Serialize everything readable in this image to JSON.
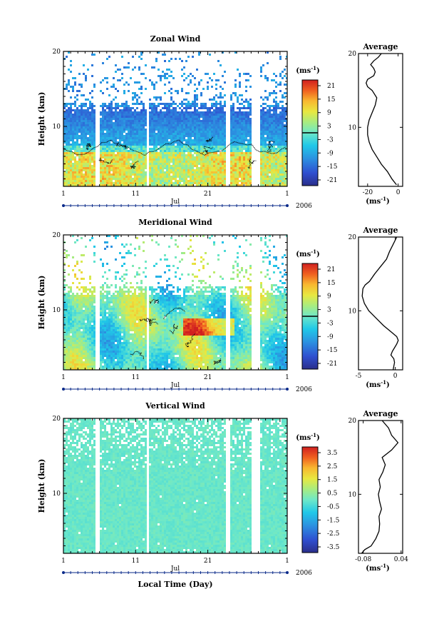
{
  "chart_data": [
    {
      "type": "heatmap",
      "title": "Zonal Wind",
      "ylabel": "Height (km)",
      "ylim": [
        2,
        20
      ],
      "y_ticks": [
        "20",
        "10"
      ],
      "x_ticks": [
        "1",
        "11",
        "21",
        "1"
      ],
      "month_label": "Jul",
      "year_label": "2006",
      "colorbar": {
        "unit": "(ms",
        "unit_exp": "-1",
        "unit_close": ")",
        "labels": [
          "21",
          "15",
          "9",
          "3",
          "-3",
          "-9",
          "-15",
          "-21"
        ],
        "zero_line": 0
      },
      "profile": {
        "title": "Average",
        "ylim": [
          2,
          20
        ],
        "xlim": [
          -26,
          3
        ],
        "x_ticks": [
          "-20",
          "0"
        ],
        "x_tick_values": [
          -20,
          0
        ],
        "y_ticks": [
          "20",
          "10"
        ],
        "xunit": "(ms",
        "xunit_exp": "-1",
        "xunit_close": ")",
        "y": [
          2.2,
          3,
          4,
          5,
          6,
          7,
          8,
          9,
          10,
          11,
          12,
          13,
          14,
          15,
          15.5,
          16,
          16.5,
          17,
          17.5,
          18,
          18.5,
          19,
          19.5,
          20
        ],
        "x": [
          -1,
          -4,
          -7,
          -11,
          -14,
          -17,
          -19,
          -20,
          -20,
          -19,
          -17,
          -15,
          -14,
          -17,
          -20,
          -21,
          -20,
          -16,
          -15,
          -16,
          -18,
          -16,
          -13,
          -11
        ]
      }
    },
    {
      "type": "heatmap",
      "title": "Meridional Wind",
      "ylabel": "Height (km)",
      "ylim": [
        2,
        20
      ],
      "y_ticks": [
        "20",
        "10"
      ],
      "x_ticks": [
        "1",
        "11",
        "21",
        "1"
      ],
      "month_label": "Jul",
      "year_label": "2006",
      "colorbar": {
        "unit": "(ms",
        "unit_exp": "-1",
        "unit_close": ")",
        "labels": [
          "21",
          "15",
          "9",
          "3",
          "-3",
          "-9",
          "-15",
          "-21"
        ],
        "zero_line": 0
      },
      "profile": {
        "title": "Average",
        "ylim": [
          2,
          20
        ],
        "xlim": [
          -5,
          1
        ],
        "x_ticks": [
          "-5",
          "0"
        ],
        "x_tick_values": [
          -5,
          0
        ],
        "y_ticks": [
          "20",
          "10"
        ],
        "xunit": "(ms",
        "xunit_exp": "-1",
        "xunit_close": ")",
        "y": [
          2,
          3,
          3.5,
          4,
          4.5,
          5,
          5.5,
          6,
          6.5,
          7,
          8,
          9,
          10,
          11,
          12,
          13,
          13.5,
          14,
          15,
          16,
          17,
          18,
          19,
          20
        ],
        "x": [
          -0.3,
          -0.1,
          -0.2,
          -0.6,
          -0.4,
          -0.1,
          0.2,
          0.4,
          0.2,
          -0.4,
          -1.6,
          -2.6,
          -3.6,
          -4.2,
          -4.5,
          -4.4,
          -4.1,
          -3.5,
          -2.8,
          -2.0,
          -1.2,
          -0.8,
          -0.3,
          0.2
        ]
      }
    },
    {
      "type": "heatmap",
      "title": "Vertical Wind",
      "ylabel": "Height (km)",
      "xlabel": "Local Time (Day)",
      "ylim": [
        2,
        20
      ],
      "y_ticks": [
        "20",
        "10"
      ],
      "x_ticks": [
        "1",
        "11",
        "21",
        "1"
      ],
      "month_label": "Jul",
      "year_label": "2006",
      "colorbar": {
        "unit": "(ms",
        "unit_exp": "-1",
        "unit_close": ")",
        "labels": [
          "3.5",
          "2.5",
          "1.5",
          "0.5",
          "-0.5",
          "-1.5",
          "-2.5",
          "-3.5"
        ]
      },
      "profile": {
        "title": "Average",
        "ylim": [
          2,
          20
        ],
        "xlim": [
          -0.095,
          0.045
        ],
        "x_ticks": [
          "-0.08",
          "0.04"
        ],
        "x_tick_values": [
          -0.08,
          0.04
        ],
        "y_ticks": [
          "20",
          "10"
        ],
        "xunit": "(ms",
        "xunit_exp": "-1",
        "xunit_close": ")",
        "y": [
          2,
          2.5,
          3,
          4,
          5,
          6,
          7,
          8,
          9,
          10,
          11,
          12,
          13,
          14,
          15,
          16,
          17,
          18,
          19,
          20
        ],
        "x": [
          -0.085,
          -0.075,
          -0.055,
          -0.04,
          -0.03,
          -0.028,
          -0.03,
          -0.022,
          -0.028,
          -0.032,
          -0.026,
          -0.03,
          -0.018,
          -0.01,
          -0.02,
          0.01,
          0.03,
          0.01,
          0.0,
          -0.02
        ]
      }
    }
  ]
}
